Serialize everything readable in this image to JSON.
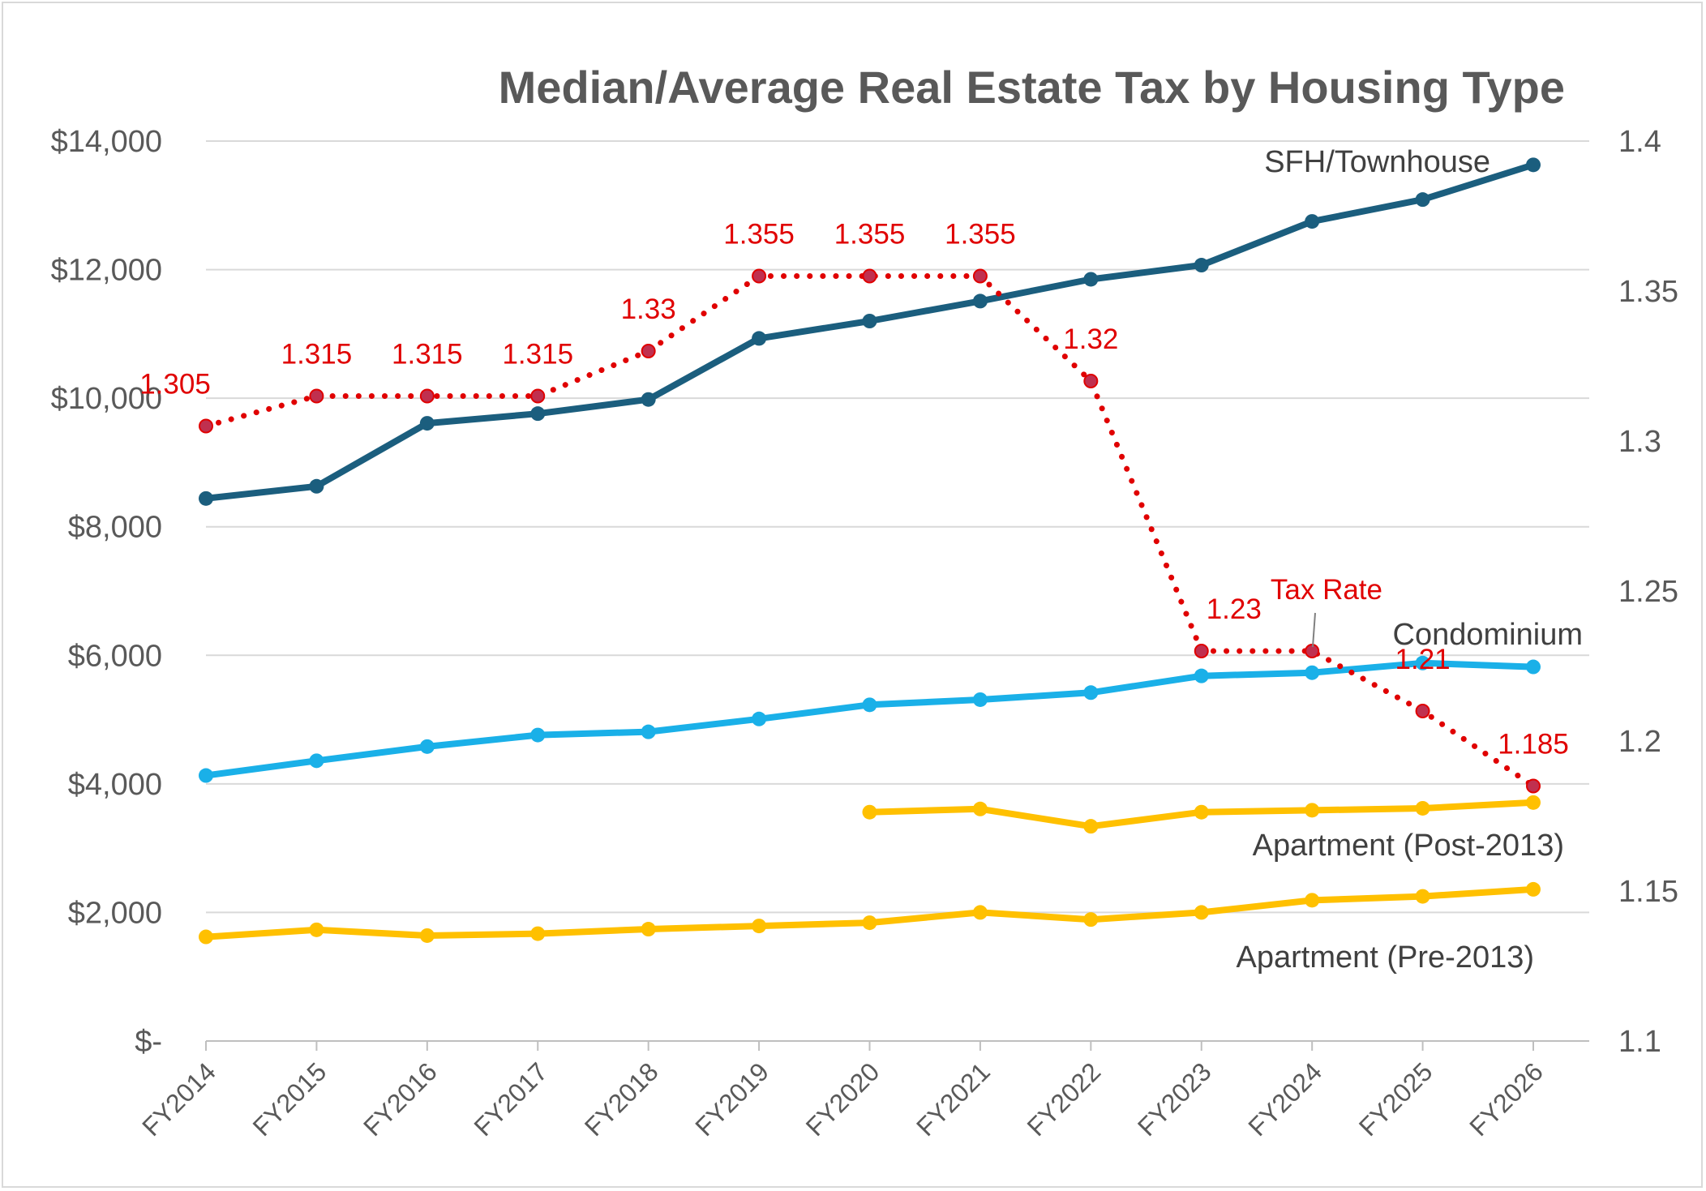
{
  "chart_data": {
    "type": "line",
    "title": "Median/Average Real Estate Tax by Housing Type",
    "categories": [
      "FY2014",
      "FY2015",
      "FY2016",
      "FY2017",
      "FY2018",
      "FY2019",
      "FY2020",
      "FY2021",
      "FY2022",
      "FY2023",
      "FY2024",
      "FY2025",
      "FY2026"
    ],
    "y_left": {
      "ylim": [
        0,
        14000
      ],
      "ticks": [
        0,
        2000,
        4000,
        6000,
        8000,
        10000,
        12000,
        14000
      ],
      "tick_labels": [
        "$-",
        "$2,000",
        "$4,000",
        "$6,000",
        "$8,000",
        "$10,000",
        "$12,000",
        "$14,000"
      ]
    },
    "y_right": {
      "ylim": [
        1.1,
        1.4
      ],
      "ticks": [
        1.1,
        1.15,
        1.2,
        1.25,
        1.3,
        1.35,
        1.4
      ],
      "tick_labels": [
        "1.1",
        "1.15",
        "1.2",
        "1.25",
        "1.3",
        "1.35",
        "1.4"
      ]
    },
    "grid": true,
    "series": [
      {
        "name": "SFH/Townhouse",
        "axis": "left",
        "color": "#1b5e7e",
        "style": "solid",
        "values": [
          8440,
          8630,
          9610,
          9760,
          9980,
          10930,
          11200,
          11510,
          11850,
          12070,
          12750,
          13090,
          13630
        ]
      },
      {
        "name": "Condominium",
        "axis": "left",
        "color": "#1ab0e8",
        "style": "solid",
        "values": [
          4130,
          4360,
          4580,
          4760,
          4810,
          5010,
          5230,
          5310,
          5420,
          5680,
          5730,
          5880,
          5820
        ]
      },
      {
        "name": "Apartment (Post-2013)",
        "axis": "left",
        "color": "#ffc000",
        "style": "solid",
        "values": [
          null,
          null,
          null,
          null,
          null,
          null,
          3560,
          3610,
          3340,
          3560,
          3590,
          3620,
          3710
        ]
      },
      {
        "name": "Apartment (Pre-2013)",
        "axis": "left",
        "color": "#ffc000",
        "style": "solid",
        "values": [
          1620,
          1730,
          1640,
          1670,
          1740,
          1790,
          1840,
          2000,
          1890,
          2000,
          2190,
          2250,
          2360
        ]
      },
      {
        "name": "Tax Rate",
        "axis": "right",
        "color": "#e00000",
        "style": "dotted",
        "marker_fill": "#c0304f",
        "values": [
          1.305,
          1.315,
          1.315,
          1.315,
          1.33,
          1.355,
          1.355,
          1.355,
          1.32,
          1.23,
          1.23,
          1.21,
          1.185
        ],
        "data_labels": [
          "1.305",
          "1.315",
          "1.315",
          "1.315",
          "1.33",
          "1.355",
          "1.355",
          "1.355",
          "1.32",
          "1.23",
          "",
          "1.21",
          "1.185"
        ]
      }
    ]
  }
}
